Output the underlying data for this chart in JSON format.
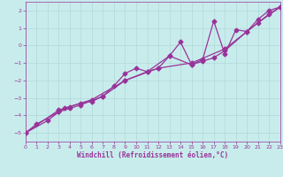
{
  "xlabel": "Windchill (Refroidissement éolien,°C)",
  "ylabel": "",
  "background_color": "#c8ecec",
  "grid_color": "#b0d8d8",
  "line_color": "#993399",
  "xlim": [
    0,
    23
  ],
  "ylim": [
    -5.5,
    2.5
  ],
  "xticks": [
    0,
    1,
    2,
    3,
    4,
    5,
    6,
    7,
    8,
    9,
    10,
    11,
    12,
    13,
    14,
    15,
    16,
    17,
    18,
    19,
    20,
    21,
    22,
    23
  ],
  "yticks": [
    -5,
    -4,
    -3,
    -2,
    -1,
    0,
    1,
    2
  ],
  "series1_x": [
    0,
    1,
    3,
    3.5,
    4,
    5,
    6,
    7,
    8,
    9,
    10,
    11,
    12,
    13,
    14,
    15,
    16,
    17,
    18,
    19,
    20,
    21,
    22,
    23
  ],
  "series1_y": [
    -5.0,
    -4.5,
    -3.8,
    -3.6,
    -3.5,
    -3.3,
    -3.2,
    -2.9,
    -2.3,
    -1.6,
    -1.3,
    -1.5,
    -1.3,
    -0.6,
    0.2,
    -1.1,
    -0.8,
    1.4,
    -0.5,
    0.9,
    0.8,
    1.5,
    2.0,
    2.2
  ],
  "series2_x": [
    0,
    2,
    3,
    4,
    5,
    7,
    9,
    11,
    13,
    15,
    16,
    17,
    18,
    20,
    22,
    23
  ],
  "series2_y": [
    -5.0,
    -4.3,
    -3.8,
    -3.6,
    -3.4,
    -2.9,
    -2.0,
    -1.5,
    -0.6,
    -1.1,
    -0.9,
    -0.7,
    -0.3,
    0.8,
    1.8,
    2.2
  ],
  "series3_x": [
    0,
    3,
    6,
    9,
    12,
    15,
    18,
    21,
    23
  ],
  "series3_y": [
    -5.0,
    -3.7,
    -3.1,
    -2.0,
    -1.3,
    -1.0,
    -0.2,
    1.3,
    2.2
  ],
  "marker": "D",
  "markersize": 2.5,
  "linewidth": 0.9,
  "font_color": "#993399",
  "tick_fontsize": 4.5,
  "label_fontsize": 5.5
}
